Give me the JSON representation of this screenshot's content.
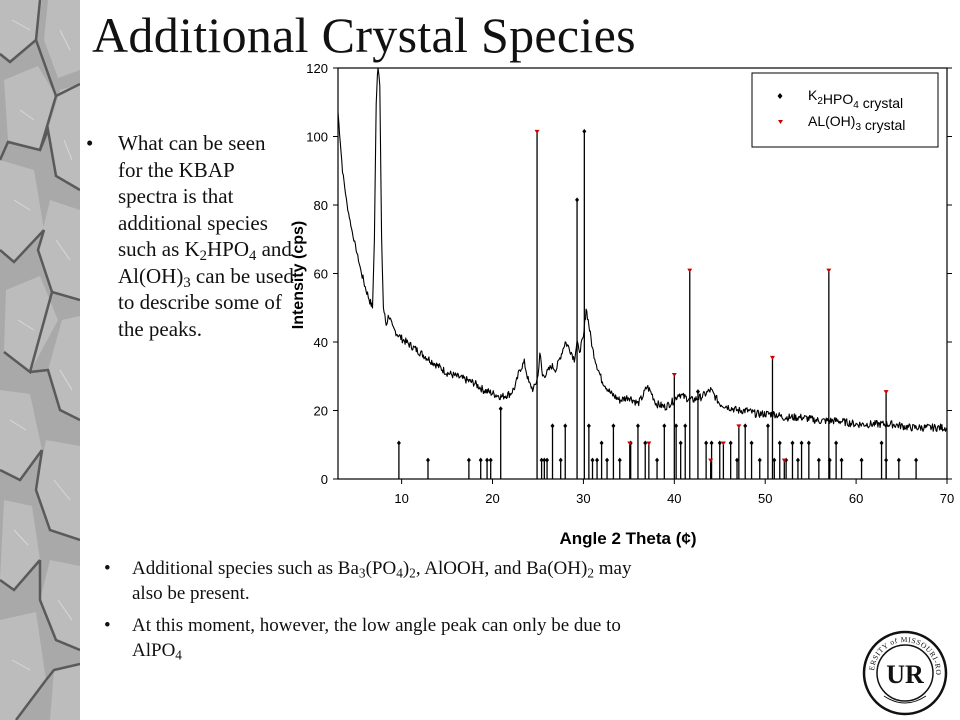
{
  "slide": {
    "title": "Additional Crystal Species",
    "left_bullet": [
      {
        "t": "What can be seen for the KBAP spectra is that additional species such as K"
      },
      {
        "t": "2",
        "sub": true
      },
      {
        "t": "HPO"
      },
      {
        "t": "4",
        "sub": true
      },
      {
        "t": " and Al(OH)"
      },
      {
        "t": "3",
        "sub": true
      },
      {
        "t": " can be used to describe some of the peaks."
      }
    ],
    "bottom_bullets": [
      [
        {
          "t": "Additional species such as Ba"
        },
        {
          "t": "3",
          "sub": true
        },
        {
          "t": "(PO"
        },
        {
          "t": "4",
          "sub": true
        },
        {
          "t": ")"
        },
        {
          "t": "2",
          "sub": true
        },
        {
          "t": ", AlOOH, and Ba(OH)"
        },
        {
          "t": "2",
          "sub": true
        },
        {
          "t": " may also be present."
        }
      ],
      [
        {
          "t": "At this moment, however, the low angle peak can only be due to AlPO"
        },
        {
          "t": "4",
          "sub": true
        }
      ]
    ],
    "seal_text": "UNIVERSITY of MISSOURI-ROLLA",
    "seal_monogram": "UR"
  },
  "chart_data": {
    "type": "line",
    "xlabel": "Angle 2 Theta (¢)",
    "ylabel": "Intensity (cps)",
    "xlim": [
      3,
      70
    ],
    "ylim": [
      0,
      120
    ],
    "x_ticks": [
      10,
      20,
      30,
      40,
      50,
      60,
      70
    ],
    "y_ticks": [
      0,
      20,
      40,
      60,
      80,
      100,
      120
    ],
    "legend_position": "top-right",
    "line_color": "#000000",
    "spectrum_outline": [
      [
        3,
        107
      ],
      [
        3.5,
        90
      ],
      [
        4,
        80
      ],
      [
        4.5,
        73
      ],
      [
        5,
        67
      ],
      [
        5.5,
        61
      ],
      [
        6,
        56
      ],
      [
        6.5,
        52
      ],
      [
        6.8,
        50
      ],
      [
        7.0,
        70
      ],
      [
        7.2,
        110
      ],
      [
        7.4,
        122
      ],
      [
        7.6,
        115
      ],
      [
        7.8,
        70
      ],
      [
        8.0,
        50
      ],
      [
        8.3,
        45
      ],
      [
        8.6,
        48
      ],
      [
        9,
        44
      ],
      [
        10,
        41
      ],
      [
        11,
        39
      ],
      [
        12,
        37
      ],
      [
        13,
        35
      ],
      [
        14,
        33
      ],
      [
        15,
        31
      ],
      [
        16,
        30
      ],
      [
        17,
        29
      ],
      [
        18,
        28
      ],
      [
        19,
        26
      ],
      [
        20,
        25
      ],
      [
        21,
        24
      ],
      [
        22,
        25
      ],
      [
        22.5,
        27
      ],
      [
        23,
        32
      ],
      [
        23.5,
        34
      ],
      [
        24,
        28
      ],
      [
        24.5,
        26
      ],
      [
        25,
        30
      ],
      [
        25.2,
        37
      ],
      [
        25.5,
        30
      ],
      [
        26,
        31
      ],
      [
        26.5,
        33
      ],
      [
        27,
        32
      ],
      [
        27.5,
        36
      ],
      [
        28,
        40
      ],
      [
        28.5,
        38
      ],
      [
        29,
        35
      ],
      [
        29.3,
        40
      ],
      [
        29.5,
        37
      ],
      [
        30,
        41
      ],
      [
        30.3,
        50
      ],
      [
        30.6,
        45
      ],
      [
        31,
        38
      ],
      [
        31.5,
        33
      ],
      [
        32,
        29
      ],
      [
        33,
        25
      ],
      [
        34,
        23
      ],
      [
        35,
        24
      ],
      [
        36,
        22
      ],
      [
        36.5,
        24
      ],
      [
        37,
        27
      ],
      [
        37.5,
        25
      ],
      [
        38,
        22
      ],
      [
        39,
        21
      ],
      [
        40,
        23
      ],
      [
        40.5,
        25
      ],
      [
        41,
        24
      ],
      [
        42,
        23
      ],
      [
        43,
        24
      ],
      [
        43.5,
        25
      ],
      [
        44,
        26
      ],
      [
        44.5,
        24
      ],
      [
        45,
        22
      ],
      [
        46,
        21
      ],
      [
        47,
        20
      ],
      [
        48,
        20
      ],
      [
        49,
        19
      ],
      [
        50,
        19
      ],
      [
        51,
        19
      ],
      [
        52,
        18
      ],
      [
        54,
        18
      ],
      [
        56,
        17
      ],
      [
        58,
        17
      ],
      [
        60,
        16
      ],
      [
        62,
        16
      ],
      [
        64,
        16
      ],
      [
        66,
        15
      ],
      [
        68,
        15
      ],
      [
        70,
        15
      ]
    ],
    "series": [
      {
        "name": "K2HPO4 crystal",
        "marker": "diamond",
        "color": "#000000",
        "x": [
          9.7,
          12.9,
          17.4,
          18.7,
          19.4,
          19.8,
          20.9,
          25.4,
          25.7,
          26.0,
          26.6,
          27.5,
          28.0,
          29.3,
          30.1,
          30.6,
          31.0,
          31.5,
          32.0,
          32.6,
          33.3,
          34.0,
          35.2,
          36.0,
          36.8,
          38.1,
          38.9,
          40.2,
          40.7,
          41.2,
          42.6,
          43.5,
          44.1,
          45.0,
          46.2,
          46.9,
          47.8,
          48.5,
          49.4,
          50.3,
          51.0,
          51.6,
          52.3,
          53.0,
          53.6,
          54.0,
          54.8,
          55.9,
          57.1,
          57.8,
          58.4,
          60.6,
          62.8,
          63.3,
          64.7,
          66.6
        ],
        "y": [
          10.5,
          5.5,
          5.5,
          5.5,
          5.5,
          5.5,
          20.5,
          5.5,
          5.5,
          5.5,
          15.5,
          5.5,
          15.5,
          81.5,
          101.5,
          15.5,
          5.5,
          5.5,
          10.5,
          5.5,
          15.5,
          5.5,
          10.5,
          15.5,
          10.5,
          5.5,
          15.5,
          15.5,
          10.5,
          15.5,
          25.5,
          10.5,
          10.5,
          10.5,
          10.5,
          5.5,
          15.5,
          10.5,
          5.5,
          15.5,
          5.5,
          10.5,
          5.5,
          10.5,
          5.5,
          10.5,
          10.5,
          5.5,
          5.5,
          10.5,
          5.5,
          5.5,
          10.5,
          5.5,
          5.5,
          5.5
        ]
      },
      {
        "name": "AL(OH)3 crystal",
        "marker": "triangle-down",
        "color": "#cc0000",
        "x": [
          24.9,
          35.1,
          37.2,
          40.0,
          41.7,
          44.0,
          45.4,
          47.1,
          50.8,
          52.1,
          57.0,
          63.3
        ],
        "y": [
          101.5,
          10.5,
          10.5,
          30.5,
          61.0,
          5.5,
          10.5,
          15.5,
          35.5,
          5.5,
          61.0,
          25.5
        ]
      }
    ]
  }
}
